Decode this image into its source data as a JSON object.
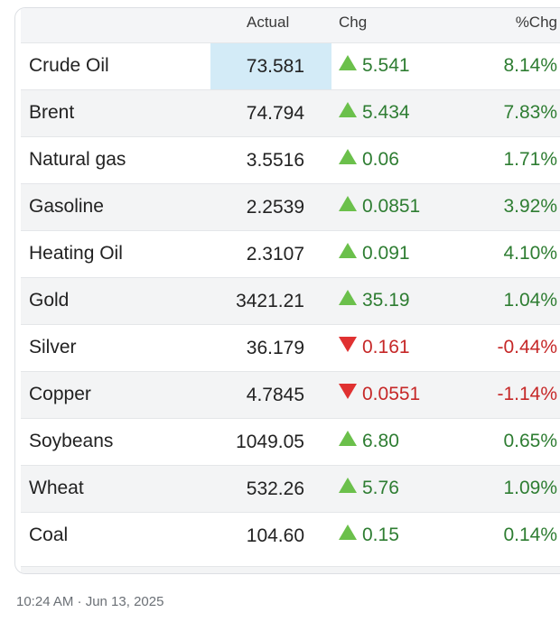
{
  "table": {
    "columns": [
      "",
      "Actual",
      "Chg",
      "%Chg"
    ],
    "rows": [
      {
        "name": "Crude Oil",
        "actual": "73.581",
        "dir": "up",
        "chg": "5.541",
        "pct": "8.14%",
        "highlight": true
      },
      {
        "name": "Brent",
        "actual": "74.794",
        "dir": "up",
        "chg": "5.434",
        "pct": "7.83%"
      },
      {
        "name": "Natural gas",
        "actual": "3.5516",
        "dir": "up",
        "chg": "0.06",
        "pct": "1.71%"
      },
      {
        "name": "Gasoline",
        "actual": "2.2539",
        "dir": "up",
        "chg": "0.0851",
        "pct": "3.92%"
      },
      {
        "name": "Heating Oil",
        "actual": "2.3107",
        "dir": "up",
        "chg": "0.091",
        "pct": "4.10%"
      },
      {
        "name": "Gold",
        "actual": "3421.21",
        "dir": "up",
        "chg": "35.19",
        "pct": "1.04%"
      },
      {
        "name": "Silver",
        "actual": "36.179",
        "dir": "down",
        "chg": "0.161",
        "pct": "-0.44%"
      },
      {
        "name": "Copper",
        "actual": "4.7845",
        "dir": "down",
        "chg": "0.0551",
        "pct": "-1.14%"
      },
      {
        "name": "Soybeans",
        "actual": "1049.05",
        "dir": "up",
        "chg": "6.80",
        "pct": "0.65%"
      },
      {
        "name": "Wheat",
        "actual": "532.26",
        "dir": "up",
        "chg": "5.76",
        "pct": "1.09%"
      },
      {
        "name": "Coal",
        "actual": "104.60",
        "dir": "up",
        "chg": "0.15",
        "pct": "0.14%"
      }
    ]
  },
  "colors": {
    "up_arrow": "#6bc04b",
    "down_arrow": "#e03131",
    "up_text": "#2e7d32",
    "down_text": "#c62828",
    "highlight": "#d3ebf7"
  },
  "timestamp": "10:24 AM · Jun 13, 2025"
}
